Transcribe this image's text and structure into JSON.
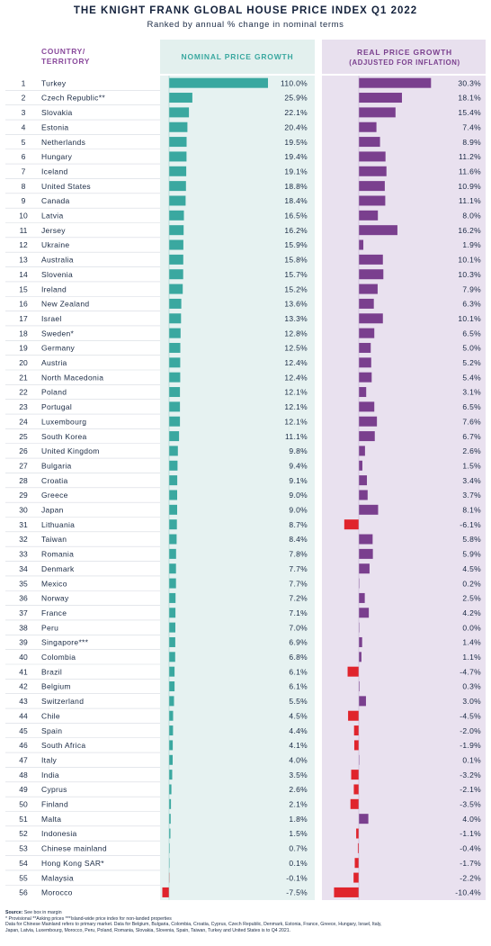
{
  "title": "THE KNIGHT FRANK GLOBAL HOUSE PRICE INDEX Q1 2022",
  "subtitle": "Ranked by annual % change in nominal terms",
  "headers": {
    "country_line1": "COUNTRY/",
    "country_line2": "TERRITORY",
    "nominal": "NOMINAL PRICE GROWTH",
    "real_line1": "REAL PRICE GROWTH",
    "real_line2": "(ADJUSTED FOR INFLATION)"
  },
  "colors": {
    "nominal_positive": "#3aa8a0",
    "real_positive": "#7a3f8e",
    "negative": "#e0242c",
    "nominal_panel": "#e6f2f1",
    "real_panel": "#e9e1ef",
    "header_nominal_bg": "#e3f0ee",
    "header_real_bg": "#e8e0ee",
    "header_nominal_text": "#3aa8a0",
    "header_real_text": "#7a3f8e",
    "country_header_text": "#8a4a9c"
  },
  "footer": {
    "source_label": "Source:",
    "source_text": " See box in margin",
    "note1": "* Provisional **Asking prices ***Island-wide price index for non-landed properties",
    "note2": "Data for Chinese Mainland refers to primary market. Data for Belgium, Bulgaria, Colombia, Croatia, Cyprus, Czech Republic, Denmark, Estonia, France, Greece, Hungary, Israel, Italy,",
    "note3": "Japan, Latvia, Luxembourg, Morocco, Peru, Poland, Romania, Slovakia, Slovenia, Spain, Taiwan, Turkey and United States is to Q4 2021."
  },
  "chart_data": {
    "type": "table",
    "columns": [
      "Rank",
      "Country/Territory",
      "Nominal price growth (%)",
      "Real price growth (%)"
    ],
    "rows": [
      {
        "rank": 1,
        "country": "Turkey",
        "nominal": 110.0,
        "real": 30.3
      },
      {
        "rank": 2,
        "country": "Czech Republic**",
        "nominal": 25.9,
        "real": 18.1
      },
      {
        "rank": 3,
        "country": "Slovakia",
        "nominal": 22.1,
        "real": 15.4
      },
      {
        "rank": 4,
        "country": "Estonia",
        "nominal": 20.4,
        "real": 7.4
      },
      {
        "rank": 5,
        "country": "Netherlands",
        "nominal": 19.5,
        "real": 8.9
      },
      {
        "rank": 6,
        "country": "Hungary",
        "nominal": 19.4,
        "real": 11.2
      },
      {
        "rank": 7,
        "country": "Iceland",
        "nominal": 19.1,
        "real": 11.6
      },
      {
        "rank": 8,
        "country": "United States",
        "nominal": 18.8,
        "real": 10.9
      },
      {
        "rank": 9,
        "country": "Canada",
        "nominal": 18.4,
        "real": 11.1
      },
      {
        "rank": 10,
        "country": "Latvia",
        "nominal": 16.5,
        "real": 8.0
      },
      {
        "rank": 11,
        "country": "Jersey",
        "nominal": 16.2,
        "real": 16.2
      },
      {
        "rank": 12,
        "country": "Ukraine",
        "nominal": 15.9,
        "real": 1.9
      },
      {
        "rank": 13,
        "country": "Australia",
        "nominal": 15.8,
        "real": 10.1
      },
      {
        "rank": 14,
        "country": "Slovenia",
        "nominal": 15.7,
        "real": 10.3
      },
      {
        "rank": 15,
        "country": "Ireland",
        "nominal": 15.2,
        "real": 7.9
      },
      {
        "rank": 16,
        "country": "New Zealand",
        "nominal": 13.6,
        "real": 6.3
      },
      {
        "rank": 17,
        "country": "Israel",
        "nominal": 13.3,
        "real": 10.1
      },
      {
        "rank": 18,
        "country": "Sweden*",
        "nominal": 12.8,
        "real": 6.5
      },
      {
        "rank": 19,
        "country": "Germany",
        "nominal": 12.5,
        "real": 5.0
      },
      {
        "rank": 20,
        "country": "Austria",
        "nominal": 12.4,
        "real": 5.2
      },
      {
        "rank": 21,
        "country": "North Macedonia",
        "nominal": 12.4,
        "real": 5.4
      },
      {
        "rank": 22,
        "country": "Poland",
        "nominal": 12.1,
        "real": 3.1
      },
      {
        "rank": 23,
        "country": "Portugal",
        "nominal": 12.1,
        "real": 6.5
      },
      {
        "rank": 24,
        "country": "Luxembourg",
        "nominal": 12.1,
        "real": 7.6
      },
      {
        "rank": 25,
        "country": "South Korea",
        "nominal": 11.1,
        "real": 6.7
      },
      {
        "rank": 26,
        "country": "United Kingdom",
        "nominal": 9.8,
        "real": 2.6
      },
      {
        "rank": 27,
        "country": "Bulgaria",
        "nominal": 9.4,
        "real": 1.5
      },
      {
        "rank": 28,
        "country": "Croatia",
        "nominal": 9.1,
        "real": 3.4
      },
      {
        "rank": 29,
        "country": "Greece",
        "nominal": 9.0,
        "real": 3.7
      },
      {
        "rank": 30,
        "country": "Japan",
        "nominal": 9.0,
        "real": 8.1
      },
      {
        "rank": 31,
        "country": "Lithuania",
        "nominal": 8.7,
        "real": -6.1
      },
      {
        "rank": 32,
        "country": "Taiwan",
        "nominal": 8.4,
        "real": 5.8
      },
      {
        "rank": 33,
        "country": "Romania",
        "nominal": 7.8,
        "real": 5.9
      },
      {
        "rank": 34,
        "country": "Denmark",
        "nominal": 7.7,
        "real": 4.5
      },
      {
        "rank": 35,
        "country": "Mexico",
        "nominal": 7.7,
        "real": 0.2
      },
      {
        "rank": 36,
        "country": "Norway",
        "nominal": 7.2,
        "real": 2.5
      },
      {
        "rank": 37,
        "country": "France",
        "nominal": 7.1,
        "real": 4.2
      },
      {
        "rank": 38,
        "country": "Peru",
        "nominal": 7.0,
        "real": 0.0
      },
      {
        "rank": 39,
        "country": "Singapore***",
        "nominal": 6.9,
        "real": 1.4
      },
      {
        "rank": 40,
        "country": "Colombia",
        "nominal": 6.8,
        "real": 1.1
      },
      {
        "rank": 41,
        "country": "Brazil",
        "nominal": 6.1,
        "real": -4.7
      },
      {
        "rank": 42,
        "country": "Belgium",
        "nominal": 6.1,
        "real": 0.3
      },
      {
        "rank": 43,
        "country": "Switzerland",
        "nominal": 5.5,
        "real": 3.0
      },
      {
        "rank": 44,
        "country": "Chile",
        "nominal": 4.5,
        "real": -4.5
      },
      {
        "rank": 45,
        "country": "Spain",
        "nominal": 4.4,
        "real": -2.0
      },
      {
        "rank": 46,
        "country": "South Africa",
        "nominal": 4.1,
        "real": -1.9
      },
      {
        "rank": 47,
        "country": "Italy",
        "nominal": 4.0,
        "real": 0.1
      },
      {
        "rank": 48,
        "country": "India",
        "nominal": 3.5,
        "real": -3.2
      },
      {
        "rank": 49,
        "country": "Cyprus",
        "nominal": 2.6,
        "real": -2.1
      },
      {
        "rank": 50,
        "country": "Finland",
        "nominal": 2.1,
        "real": -3.5
      },
      {
        "rank": 51,
        "country": "Malta",
        "nominal": 1.8,
        "real": 4.0
      },
      {
        "rank": 52,
        "country": "Indonesia",
        "nominal": 1.5,
        "real": -1.1
      },
      {
        "rank": 53,
        "country": "Chinese mainland",
        "nominal": 0.7,
        "real": -0.4
      },
      {
        "rank": 54,
        "country": "Hong Kong SAR*",
        "nominal": 0.1,
        "real": -1.7
      },
      {
        "rank": 55,
        "country": "Malaysia",
        "nominal": -0.1,
        "real": -2.2
      },
      {
        "rank": 56,
        "country": "Morocco",
        "nominal": -7.5,
        "real": -10.4
      }
    ]
  }
}
